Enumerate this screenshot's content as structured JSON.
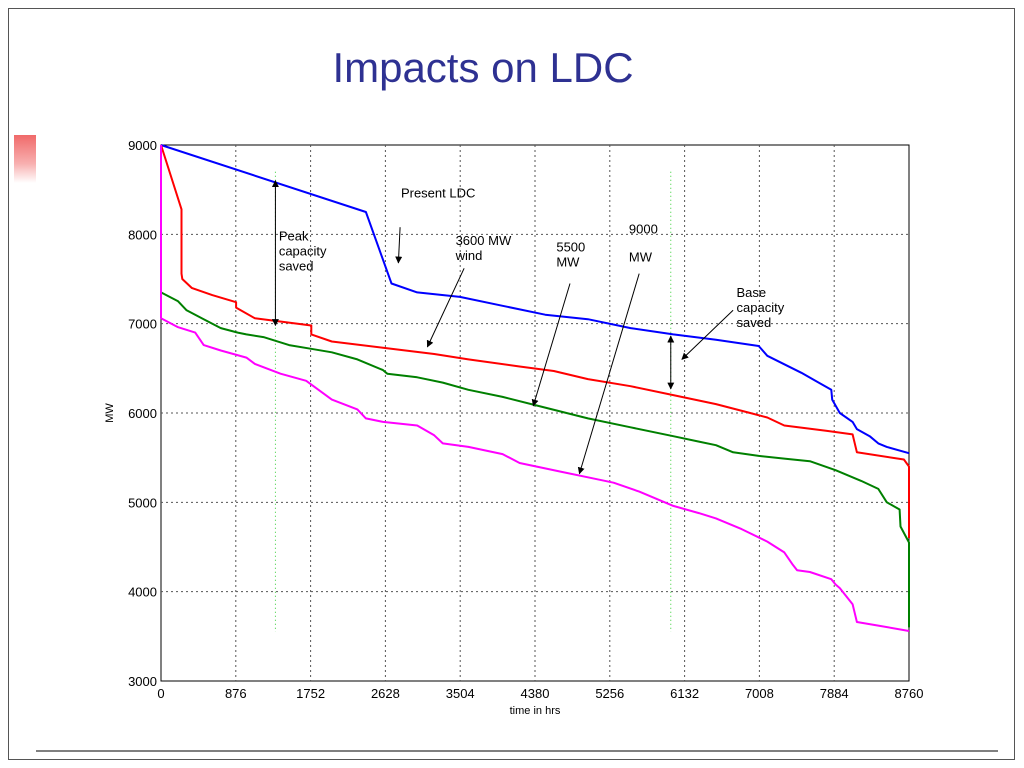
{
  "slide": {
    "title": "Impacts on LDC"
  },
  "chart_data": {
    "type": "line",
    "xlabel": "time in hrs",
    "ylabel": "MW",
    "xlim": [
      0,
      8760
    ],
    "ylim": [
      3000,
      9000
    ],
    "xticks": [
      0,
      876,
      1752,
      2628,
      3504,
      4380,
      5256,
      6132,
      7008,
      7884,
      8760
    ],
    "yticks": [
      3000,
      4000,
      5000,
      6000,
      7000,
      8000,
      9000
    ],
    "grid": true,
    "series": [
      {
        "color": "#0000ff",
        "x": [
          0,
          2400,
          2700,
          3000,
          3500,
          4000,
          4500,
          5000,
          5500,
          6000,
          6500,
          7000,
          7100,
          7500,
          7850,
          7860,
          7950,
          8100,
          8150,
          8300,
          8400,
          8500,
          8760
        ],
        "y": [
          9000,
          8250,
          7450,
          7350,
          7300,
          7200,
          7100,
          7050,
          6950,
          6880,
          6820,
          6750,
          6640,
          6450,
          6260,
          6150,
          6000,
          5900,
          5820,
          5740,
          5660,
          5620,
          5550
        ]
      },
      {
        "color": "#ff0000",
        "x": [
          0,
          240,
          240,
          250,
          360,
          600,
          880,
          880,
          1100,
          1760,
          1760,
          2000,
          2600,
          3200,
          3600,
          4200,
          4600,
          5000,
          5500,
          6000,
          6500,
          6900,
          7100,
          7300,
          7800,
          8100,
          8150,
          8700,
          8760,
          8760
        ],
        "y": [
          9000,
          8280,
          7560,
          7500,
          7400,
          7320,
          7240,
          7180,
          7060,
          6980,
          6880,
          6800,
          6730,
          6660,
          6600,
          6520,
          6470,
          6380,
          6300,
          6200,
          6100,
          6000,
          5950,
          5860,
          5800,
          5760,
          5560,
          5480,
          5400,
          4600
        ]
      },
      {
        "color": "#008000",
        "x": [
          0,
          200,
          300,
          500,
          700,
          900,
          1000,
          1200,
          1500,
          1750,
          2000,
          2300,
          2600,
          2650,
          3000,
          3300,
          3600,
          4000,
          4500,
          5000,
          5500,
          6000,
          6300,
          6500,
          6700,
          7000,
          7300,
          7600,
          7900,
          8200,
          8400,
          8500,
          8650,
          8660,
          8760,
          8760
        ],
        "y": [
          7350,
          7250,
          7150,
          7050,
          6950,
          6900,
          6880,
          6850,
          6760,
          6720,
          6680,
          6600,
          6480,
          6440,
          6400,
          6340,
          6260,
          6180,
          6060,
          5940,
          5840,
          5740,
          5680,
          5640,
          5560,
          5520,
          5490,
          5460,
          5360,
          5240,
          5150,
          5000,
          4920,
          4730,
          4550,
          3600
        ]
      },
      {
        "color": "#ff00ff",
        "x": [
          0,
          0,
          200,
          400,
          500,
          700,
          1000,
          1100,
          1400,
          1700,
          2000,
          2300,
          2400,
          2600,
          3000,
          3200,
          3300,
          3600,
          4000,
          4200,
          4700,
          5000,
          5300,
          5600,
          6000,
          6300,
          6500,
          6800,
          7100,
          7300,
          7400,
          7450,
          7600,
          7850,
          7900,
          7950,
          8100,
          8150,
          8400,
          8760
        ],
        "y": [
          9000,
          7060,
          6960,
          6900,
          6760,
          6700,
          6620,
          6550,
          6440,
          6360,
          6150,
          6040,
          5940,
          5900,
          5860,
          5750,
          5660,
          5620,
          5540,
          5440,
          5340,
          5280,
          5220,
          5120,
          4960,
          4880,
          4820,
          4700,
          4560,
          4440,
          4300,
          4240,
          4220,
          4140,
          4080,
          4040,
          3860,
          3660,
          3620,
          3560
        ]
      }
    ],
    "annotations": [
      {
        "lines": [
          "Present LDC"
        ],
        "text_at": [
          2810,
          8410
        ],
        "arrow_from": [
          2800,
          8080
        ],
        "arrow_to": [
          2780,
          7680
        ]
      },
      {
        "lines": [
          "Peak",
          "capacity",
          "saved"
        ],
        "text_at": [
          1380,
          7930
        ],
        "double_arrow": [
          [
            1340,
            8600
          ],
          [
            1340,
            6980
          ]
        ]
      },
      {
        "lines": [
          "3600 MW",
          "wind"
        ],
        "text_at": [
          3450,
          7880
        ],
        "arrow_from": [
          3550,
          7620
        ],
        "arrow_to": [
          3120,
          6740
        ]
      },
      {
        "lines": [
          "5500",
          "MW"
        ],
        "text_at": [
          4630,
          7810
        ],
        "arrow_from": [
          4790,
          7450
        ],
        "arrow_to": [
          4360,
          6080
        ]
      },
      {
        "lines": [
          "9000",
          "MW"
        ],
        "text_at": [
          5480,
          8010
        ],
        "text_dy": 28,
        "arrow_from": [
          5600,
          7560
        ],
        "arrow_to": [
          4900,
          5320
        ]
      },
      {
        "lines": [
          "Base",
          "capacity",
          "saved"
        ],
        "text_at": [
          6740,
          7300
        ],
        "arrow_from": [
          6700,
          7150
        ],
        "arrow_to": [
          6100,
          6600
        ],
        "double_arrow": [
          [
            5970,
            6860
          ],
          [
            5970,
            6270
          ]
        ]
      }
    ],
    "green_dotted_markers_x": [
      1340,
      5970
    ]
  }
}
